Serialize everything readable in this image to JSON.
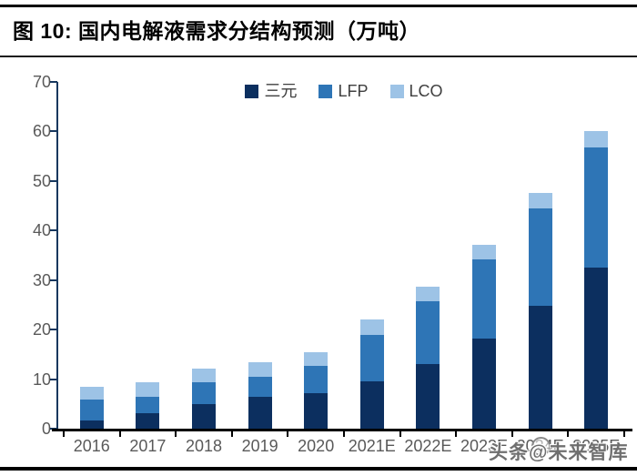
{
  "figure": {
    "title": "图 10:  国内电解液需求分结构预测（万吨）",
    "watermark": "头条@未来智库"
  },
  "chart_data": {
    "type": "bar",
    "stacked": true,
    "title": "国内电解液需求分结构预测（万吨）",
    "categories": [
      "2016",
      "2017",
      "2018",
      "2019",
      "2020",
      "2021E",
      "2022E",
      "2023E",
      "2024E",
      "2025E"
    ],
    "series": [
      {
        "name": "三元",
        "color": "#0c2f5f",
        "values": [
          1.6,
          3.2,
          5.0,
          6.4,
          7.2,
          9.5,
          13.0,
          18.2,
          24.8,
          32.5
        ]
      },
      {
        "name": "LFP",
        "color": "#2e75b6",
        "values": [
          4.2,
          3.2,
          4.4,
          4.0,
          5.5,
          9.5,
          12.8,
          16.0,
          19.6,
          24.2
        ]
      },
      {
        "name": "LCO",
        "color": "#9dc3e6",
        "values": [
          2.6,
          3.0,
          2.8,
          3.1,
          2.7,
          3.0,
          2.8,
          3.0,
          3.1,
          3.3
        ]
      }
    ],
    "totals": [
      8.4,
      9.4,
      12.2,
      13.5,
      15.4,
      22.0,
      28.6,
      37.2,
      47.5,
      60.0
    ],
    "xlabel": "",
    "ylabel": "",
    "ylim": [
      0,
      70
    ],
    "yticks": [
      0,
      10,
      20,
      30,
      40,
      50,
      60,
      70
    ],
    "grid": false,
    "legend_position": "top-center",
    "axis_colors": {
      "y_axis": "#17375e",
      "x_axis": "#000000",
      "tick_labels": "#595959"
    }
  }
}
